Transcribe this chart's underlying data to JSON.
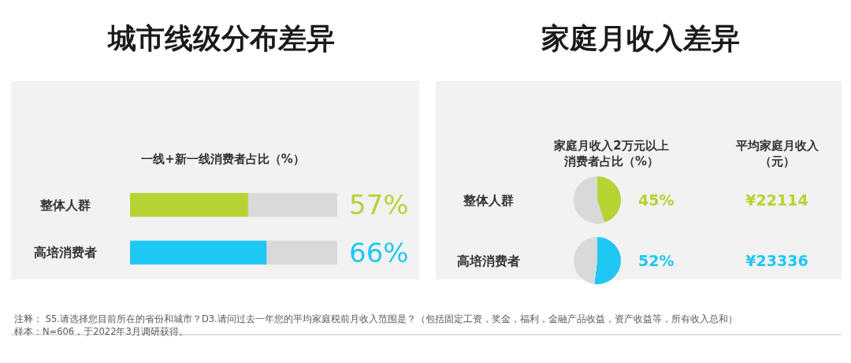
{
  "chart_data": [
    {
      "type": "bar",
      "orientation": "horizontal",
      "stacked": true,
      "title": "城市线级分布差异",
      "subtitle": "一线+新一线消费者占比（%）",
      "categories": [
        "整体人群",
        "高培消费者"
      ],
      "xlim": [
        0,
        100
      ],
      "series": [
        {
          "colors": [
            "#b5d333",
            "#1fc8f2"
          ],
          "values": [
            57,
            66
          ],
          "value_labels": [
            "57%",
            "66%"
          ]
        },
        {
          "color": "#d9d9d9",
          "values": [
            43,
            34
          ]
        }
      ],
      "annotations": [
        "注释：  S5.请选择您目前所在的省份和城市？D3.请问过去一年您的平均家庭税前月收入范围是？（包括固定工资，奖金，福利，金融产品收益，资产收益等，所有收入总和）",
        "样本：N=606，于2022年3月调研获得。"
      ]
    },
    {
      "type": "pie",
      "title": "家庭月收入差异",
      "subtitle": "家庭月收入2万元以上消费者占比（%）",
      "ylabel": "整体人群",
      "categories": [
        null,
        null
      ],
      "values": [
        45,
        55
      ],
      "colors": [
        "#b5d333",
        "#d9d9d9"
      ],
      "value_labels": [
        "45%",
        null
      ]
    },
    {
      "type": "pie",
      "ylabel": "高培消费者",
      "categories": [
        null,
        null
      ],
      "values": [
        52,
        48
      ],
      "colors": [
        "#1fc8f2",
        "#d9d9d9"
      ],
      "value_labels": [
        "52%",
        null
      ]
    },
    {
      "type": "other",
      "title": "平均家庭月收入（元）",
      "values": [
        22114,
        23336
      ],
      "value_labels": [
        "¥22114",
        "¥23336"
      ],
      "colors": [
        "#b5d333",
        "#1fc8f2"
      ]
    }
  ]
}
